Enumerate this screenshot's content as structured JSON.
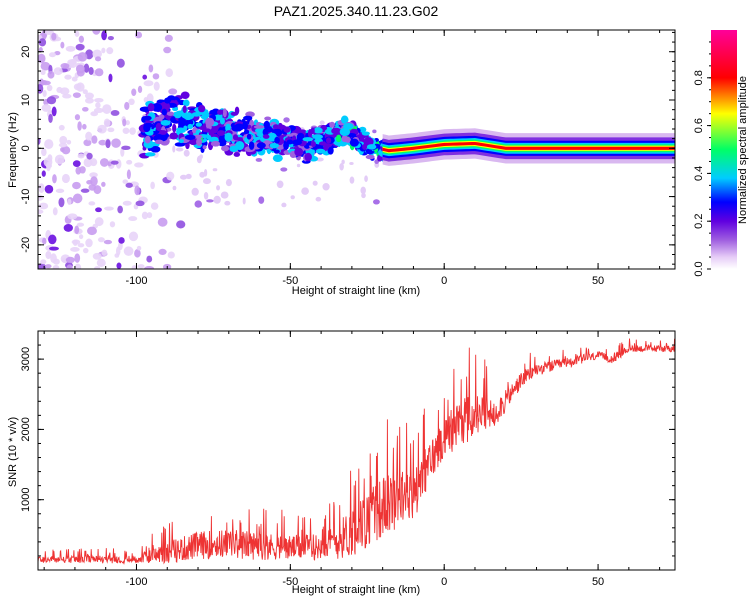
{
  "title": "PAZ1.2025.340.11.23.G02",
  "chart_data": [
    {
      "type": "heatmap",
      "xlabel": "Height of straight line (km)",
      "ylabel": "Frequency (Hz)",
      "xlim": [
        -132,
        75
      ],
      "ylim": [
        -25,
        24.5
      ],
      "xticks": [
        -100,
        -50,
        0,
        50
      ],
      "yticks": [
        -20,
        -10,
        0,
        10,
        20
      ],
      "xtick_labels": [
        "-100",
        "-50",
        "0",
        "50"
      ],
      "ytick_labels": [
        "-20",
        "-10",
        "0",
        "10",
        "20"
      ],
      "colorbar": {
        "label": "Normalized spectral amplitude",
        "range": [
          0,
          1
        ],
        "ticks": [
          0.0,
          0.2,
          0.4,
          0.6,
          0.8
        ],
        "tick_labels": [
          "0.0",
          "0.2",
          "0.4",
          "0.6",
          "0.8"
        ]
      },
      "colors": [
        "#ffffff",
        "#d9b8f0",
        "#a060e0",
        "#6000e0",
        "#0000ff",
        "#00ccff",
        "#00ff66",
        "#ffff00",
        "#ff0000",
        "#ff0088"
      ],
      "signal_track": [
        {
          "x": -95,
          "f": 4.0,
          "amp": 0.3
        },
        {
          "x": -88,
          "f": 6.5,
          "amp": 0.25
        },
        {
          "x": -82,
          "f": 5.0,
          "amp": 0.35
        },
        {
          "x": -75,
          "f": 4.0,
          "amp": 0.3
        },
        {
          "x": -68,
          "f": 3.5,
          "amp": 0.25
        },
        {
          "x": -60,
          "f": 2.5,
          "amp": 0.3
        },
        {
          "x": -52,
          "f": 1.5,
          "amp": 0.25
        },
        {
          "x": -45,
          "f": 0.5,
          "amp": 0.25
        },
        {
          "x": -38,
          "f": 2.0,
          "amp": 0.3
        },
        {
          "x": -32,
          "f": 3.5,
          "amp": 0.35
        },
        {
          "x": -25,
          "f": 0.5,
          "amp": 0.3
        },
        {
          "x": -18,
          "f": -0.5,
          "amp": 0.45
        },
        {
          "x": -10,
          "f": 0.0,
          "amp": 0.75
        },
        {
          "x": 0,
          "f": 0.8,
          "amp": 0.9
        },
        {
          "x": 10,
          "f": 1.0,
          "amp": 0.9
        },
        {
          "x": 20,
          "f": 0.0,
          "amp": 0.95
        },
        {
          "x": 40,
          "f": 0.0,
          "amp": 0.95
        },
        {
          "x": 60,
          "f": 0.0,
          "amp": 0.95
        },
        {
          "x": 75,
          "f": 0.0,
          "amp": 0.95
        }
      ]
    },
    {
      "type": "line",
      "xlabel": "Height of straight line (km)",
      "ylabel": "SNR (10 * v/v)",
      "xlim": [
        -132,
        75
      ],
      "ylim": [
        0,
        3400
      ],
      "xticks": [
        -100,
        -50,
        0,
        50
      ],
      "yticks": [
        1000,
        2000,
        3000
      ],
      "xtick_labels": [
        "-100",
        "-50",
        "0",
        "50"
      ],
      "ytick_labels": [
        "1000",
        "2000",
        "3000"
      ],
      "color": "#ee3333",
      "envelope": {
        "x": [
          -132,
          -100,
          -90,
          -80,
          -70,
          -60,
          -50,
          -40,
          -35,
          -30,
          -25,
          -20,
          -15,
          -10,
          -5,
          0,
          5,
          10,
          15,
          20,
          25,
          30,
          40,
          50,
          55,
          60,
          65,
          75
        ],
        "mean": [
          150,
          150,
          250,
          350,
          380,
          340,
          320,
          330,
          400,
          550,
          700,
          900,
          1000,
          1050,
          1500,
          1900,
          2100,
          2200,
          2200,
          2400,
          2700,
          2850,
          2950,
          3050,
          3000,
          3150,
          3150,
          3150
        ],
        "spread": [
          60,
          70,
          200,
          250,
          260,
          250,
          220,
          230,
          320,
          450,
          500,
          550,
          500,
          450,
          400,
          350,
          450,
          400,
          300,
          200,
          150,
          110,
          90,
          70,
          80,
          60,
          60,
          60
        ]
      }
    }
  ]
}
